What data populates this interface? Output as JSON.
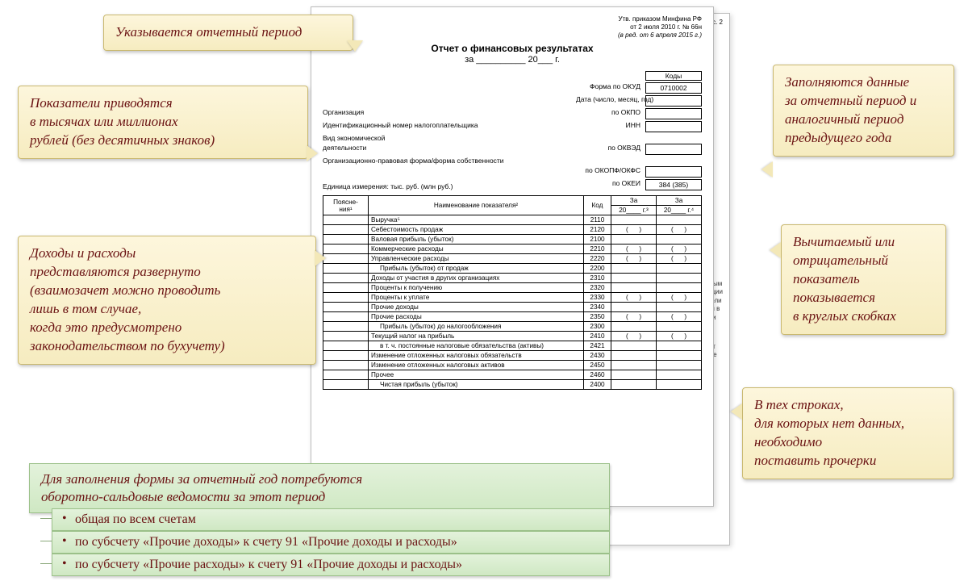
{
  "approval": {
    "l1": "Утв. приказом Минфина РФ",
    "l2": "от 2 июля 2010 г. № 66н",
    "l3": "(в ред. от 6 апреля 2015 г.)",
    "pg": "002 с. 2"
  },
  "doc": {
    "title": "Отчет о финансовых результатах",
    "sub": "за __________ 20___ г."
  },
  "meta": {
    "codes": "Коды",
    "okud_lbl": "Форма по ОКУД",
    "okud": "0710002",
    "date_lbl": "Дата (число, месяц, год)",
    "org_lbl": "Организация",
    "okpo_lbl": "по ОКПО",
    "inn_lbl": "Идентификационный номер налогоплательщика",
    "inn_mid": "ИНН",
    "econ_lbl": "Вид экономической",
    "act_lbl": "деятельности",
    "okved_lbl": "по ОКВЭД",
    "form_lbl": "Организационно-правовая форма/форма собственности",
    "okopf_lbl": "по ОКОПФ/ОКФС",
    "okei_lbl": "по ОКЕИ",
    "okei": "384 (385)"
  },
  "units": "Единица измерения: тыс. руб. (млн руб.)",
  "th": {
    "expl": "Поясне-\nния¹",
    "name": "Наименование показателя²",
    "code": "Код",
    "y1a": "За",
    "y1b": "20____ г.³",
    "y2a": "За",
    "y2b": "20____ г.⁴"
  },
  "rows": [
    {
      "name": "Выручка⁵",
      "code": "2110",
      "i": 0,
      "p": false
    },
    {
      "name": "Себестоимость продаж",
      "code": "2120",
      "i": 0,
      "p": true
    },
    {
      "name": "Валовая прибыль (убыток)",
      "code": "2100",
      "i": 0,
      "p": false
    },
    {
      "name": "Коммерческие расходы",
      "code": "2210",
      "i": 0,
      "p": true
    },
    {
      "name": "Управленческие расходы",
      "code": "2220",
      "i": 0,
      "p": true
    },
    {
      "name": "Прибыль (убыток) от продаж",
      "code": "2200",
      "i": 1,
      "p": false
    },
    {
      "name": "Доходы от участия в других организациях",
      "code": "2310",
      "i": 0,
      "p": false
    },
    {
      "name": "Проценты к получению",
      "code": "2320",
      "i": 0,
      "p": false
    },
    {
      "name": "Проценты к уплате",
      "code": "2330",
      "i": 0,
      "p": true
    },
    {
      "name": "Прочие доходы",
      "code": "2340",
      "i": 0,
      "p": false
    },
    {
      "name": "Прочие расходы",
      "code": "2350",
      "i": 0,
      "p": true
    },
    {
      "name": "Прибыль (убыток) до налогообложения",
      "code": "2300",
      "i": 1,
      "p": false
    },
    {
      "name": "Текущий налог на прибыль",
      "code": "2410",
      "i": 0,
      "p": true
    },
    {
      "name": "в т. ч. постоянные налоговые обязательства (активы)",
      "code": "2421",
      "i": 1,
      "p": false
    },
    {
      "name": "Изменение отложенных налоговых обязательств",
      "code": "2430",
      "i": 0,
      "p": false
    },
    {
      "name": "Изменение отложенных налоговых активов",
      "code": "2450",
      "i": 0,
      "p": false
    },
    {
      "name": "Прочее",
      "code": "2460",
      "i": 0,
      "p": false
    },
    {
      "name": "Чистая прибыль (убыток)",
      "code": "2400",
      "i": 1,
      "p": false
    }
  ],
  "callouts": {
    "c1": "Указывается отчетный период",
    "c2": "Показатели приводятся\nв тысячах или  миллионах\nрублей (без десятичных знаков)",
    "c3": "Заполняются данные\nза отчетный период и\nаналогичный период\nпредыдущего года",
    "c4": "Доходы и расходы\nпредставляются развернуто\n(взаимозачет можно проводить\nлишь в том случае,\nкогда это предусмотрено\nзаконодательством по бухучету)",
    "c5": "Вычитаемый или\nотрицательный\nпоказатель\nпоказывается\nв круглых скобках",
    "c6": "В тех строках,\nдля которых нет данных,\nнеобходимо\nпоставить прочерки"
  },
  "notes": {
    "head": "Для заполнения формы за отчетный год потребуются\nоборотно-сальдовые ведомости за этот период",
    "i1": "общая по всем счетам",
    "i2": "по субсчету «Прочие доходы» к счету 91 «Прочие доходы и расходы»",
    "i3": "по субсчету «Прочие расходы» к счету 91 «Прочие доходы и расходы»"
  },
  "frag": {
    "a": "еденным",
    "b": "вестиции",
    "c": "казатели",
    "d": "тается в",
    "e": "оценки",
    "f": "ьтат от",
    "g": "ций, не"
  }
}
